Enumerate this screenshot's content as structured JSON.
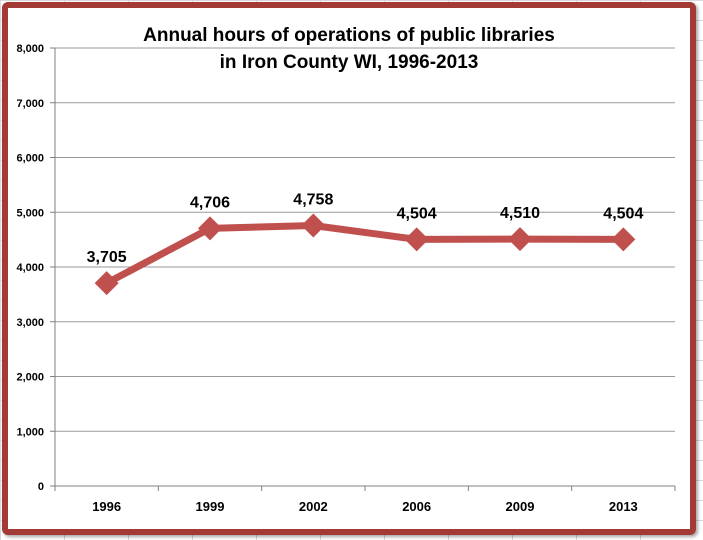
{
  "chart_data": {
    "type": "line",
    "title_line1": "Annual  hours of operations of public libraries",
    "title_line2": "in Iron County WI, 1996-2013",
    "categories": [
      "1996",
      "1999",
      "2002",
      "2006",
      "2009",
      "2013"
    ],
    "series": [
      {
        "values": [
          3705,
          4706,
          4758,
          4504,
          4510,
          4504
        ]
      }
    ],
    "data_labels": [
      "3,705",
      "4,706",
      "4,758",
      "4,504",
      "4,510",
      "4,504"
    ],
    "y_ticks": [
      0,
      1000,
      2000,
      3000,
      4000,
      5000,
      6000,
      7000,
      8000
    ],
    "y_tick_labels": [
      "0",
      "1,000",
      "2,000",
      "3,000",
      "4,000",
      "5,000",
      "6,000",
      "7,000",
      "8,000"
    ],
    "ylim": [
      0,
      8000
    ],
    "grid": true,
    "legend": false,
    "xlabel": "",
    "ylabel": "",
    "colors": {
      "line": "#c0504d",
      "frame": "#a33a36",
      "grid": "#9a9a9a"
    }
  }
}
